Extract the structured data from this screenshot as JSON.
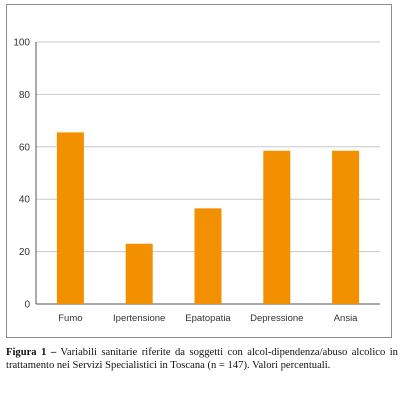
{
  "chart_data": {
    "type": "bar",
    "categories": [
      "Fumo",
      "Ipertensione",
      "Epatopatia",
      "Depressione",
      "Ansia"
    ],
    "values": [
      65.5,
      23,
      36.5,
      58.5,
      58.5
    ],
    "title": "",
    "xlabel": "",
    "ylabel": "",
    "ylim": [
      0,
      100
    ],
    "yticks": [
      0,
      20,
      40,
      60,
      80,
      100
    ],
    "grid": true,
    "bar_color": "#F39000",
    "grid_color": "#c8c8c8"
  },
  "caption": {
    "label": "Figura 1 –",
    "text": "Variabili sanitarie riferite da soggetti con alcol-dipendenza/abuso alcolico in trattamento nei Servizi Specialistici in Toscana (n = 147). Valori percentuali."
  }
}
